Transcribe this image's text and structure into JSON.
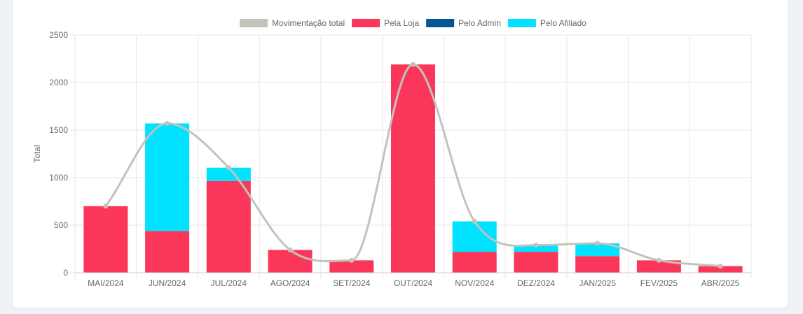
{
  "chart_data": {
    "type": "bar",
    "stacked": true,
    "categories": [
      "MAI/2024",
      "JUN/2024",
      "JUL/2024",
      "AGO/2024",
      "SET/2024",
      "OUT/2024",
      "NOV/2024",
      "DEZ/2024",
      "JAN/2025",
      "FEV/2025",
      "ABR/2025"
    ],
    "ylabel": "Total",
    "xlabel": "",
    "ylim": [
      0,
      2500
    ],
    "yticks": [
      0,
      500,
      1000,
      1500,
      2000,
      2500
    ],
    "grid": true,
    "legend_position": "top",
    "series": [
      {
        "name": "Movimentação total",
        "type": "line",
        "color": "#c3c3bb",
        "values": [
          700,
          1570,
          1105,
          240,
          130,
          2190,
          540,
          290,
          310,
          130,
          70
        ]
      },
      {
        "name": "Pela Loja",
        "type": "bar",
        "color": "#fa375a",
        "values": [
          700,
          440,
          965,
          240,
          130,
          2190,
          220,
          220,
          175,
          130,
          70
        ]
      },
      {
        "name": "Pelo Admin",
        "type": "bar",
        "color": "#005794",
        "values": [
          0,
          0,
          0,
          0,
          0,
          0,
          0,
          0,
          0,
          0,
          0
        ]
      },
      {
        "name": "Pelo Afiliado",
        "type": "bar",
        "color": "#00e2ff",
        "values": [
          0,
          1130,
          140,
          0,
          0,
          0,
          320,
          70,
          135,
          0,
          0
        ]
      }
    ]
  }
}
